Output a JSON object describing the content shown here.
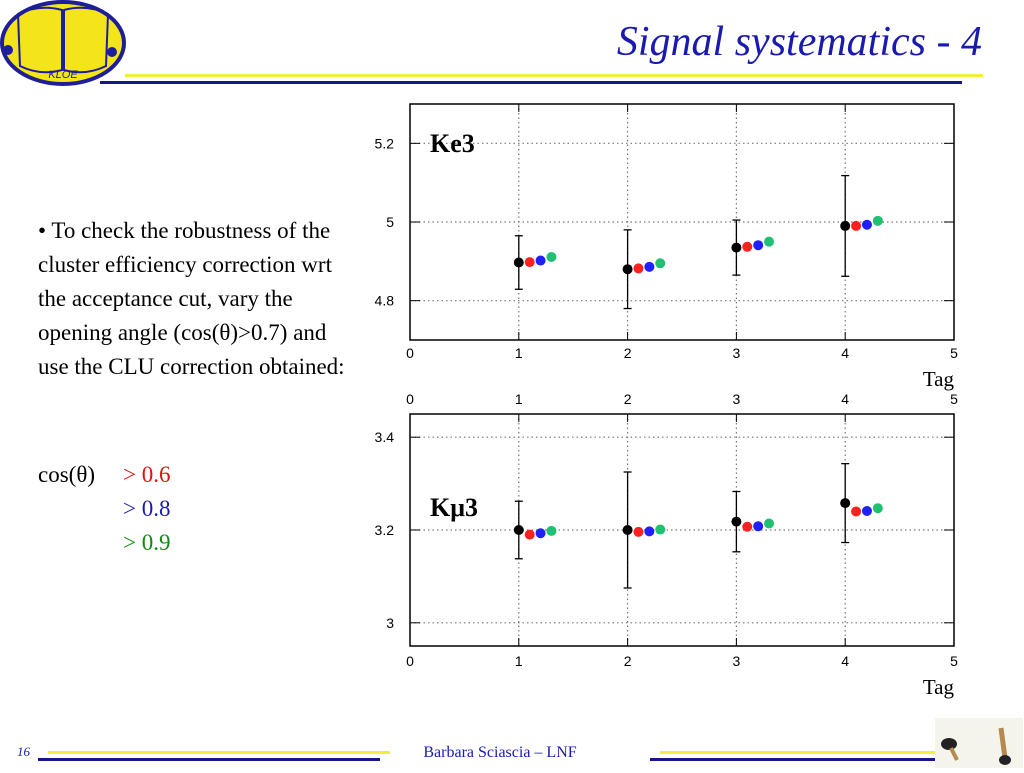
{
  "slide": {
    "title": "Signal systematics - 4",
    "logo_text": "KLOE",
    "bullet": "• To check the robustness of the cluster efficiency correction wrt the acceptance cut, vary the opening angle (cos(θ)>0.7) and use the CLU correction obtained:",
    "cos_label": "cos(θ)",
    "options": [
      {
        "text": "> 0.6",
        "color": "#e01010"
      },
      {
        "text": "> 0.8",
        "color": "#1a1ab0"
      },
      {
        "text": "> 0.9",
        "color": "#108a10"
      }
    ],
    "footer": "Barbara Sciascia – LNF",
    "page_number": "16"
  },
  "colors": {
    "title": "#1a1ab0",
    "line_yellow": "#f2ee3c",
    "line_blue": "#16168a",
    "series_black": "#000000",
    "series_red": "#ff2020",
    "series_blue": "#2020ff",
    "series_green": "#20c070"
  },
  "chart_data": [
    {
      "type": "scatter",
      "annotation": "Ke3",
      "xlabel": "Tag",
      "ylabel": "",
      "xlim": [
        0,
        5
      ],
      "ylim": [
        4.7,
        5.3
      ],
      "x_ticks": [
        "0",
        "1",
        "2",
        "3",
        "4",
        "5"
      ],
      "y_ticks": [
        "4.8",
        "5",
        "5.2"
      ],
      "y_tick_values": [
        4.8,
        5.0,
        5.2
      ],
      "top_x_ticks": [],
      "grid": true,
      "series": [
        {
          "color": "#000000",
          "x_offset": 0.0,
          "values": [
            4.897,
            4.88,
            4.935,
            4.99
          ],
          "errors": [
            0.068,
            0.1,
            0.07,
            0.128
          ]
        },
        {
          "color": "#ff2020",
          "x_offset": 0.1,
          "values": [
            4.898,
            4.882,
            4.937,
            4.99
          ],
          "errors": [
            0,
            0,
            0,
            0
          ]
        },
        {
          "color": "#2020ff",
          "x_offset": 0.2,
          "values": [
            4.902,
            4.886,
            4.941,
            4.993
          ],
          "errors": [
            0,
            0,
            0,
            0
          ]
        },
        {
          "color": "#20c070",
          "x_offset": 0.3,
          "values": [
            4.911,
            4.895,
            4.95,
            5.003
          ],
          "errors": [
            0,
            0,
            0,
            0
          ]
        }
      ]
    },
    {
      "type": "scatter",
      "annotation": "Kμ3",
      "xlabel": "Tag",
      "ylabel": "",
      "xlim": [
        0,
        5
      ],
      "ylim": [
        2.95,
        3.45
      ],
      "x_ticks": [
        "0",
        "1",
        "2",
        "3",
        "4",
        "5"
      ],
      "top_x_ticks": [
        "0",
        "1",
        "2",
        "3",
        "4",
        "5"
      ],
      "y_ticks": [
        "3",
        "3.2",
        "3.4"
      ],
      "y_tick_values": [
        3.0,
        3.2,
        3.4
      ],
      "grid": true,
      "series": [
        {
          "color": "#000000",
          "x_offset": 0.0,
          "values": [
            3.2,
            3.2,
            3.218,
            3.258
          ],
          "errors": [
            0.062,
            0.125,
            0.065,
            0.085
          ]
        },
        {
          "color": "#ff2020",
          "x_offset": 0.1,
          "values": [
            3.19,
            3.196,
            3.207,
            3.24
          ],
          "errors": [
            0,
            0,
            0,
            0
          ]
        },
        {
          "color": "#2020ff",
          "x_offset": 0.2,
          "values": [
            3.193,
            3.197,
            3.208,
            3.241
          ],
          "errors": [
            0,
            0,
            0,
            0
          ]
        },
        {
          "color": "#20c070",
          "x_offset": 0.3,
          "values": [
            3.198,
            3.201,
            3.214,
            3.247
          ],
          "errors": [
            0,
            0,
            0,
            0
          ]
        }
      ]
    }
  ]
}
